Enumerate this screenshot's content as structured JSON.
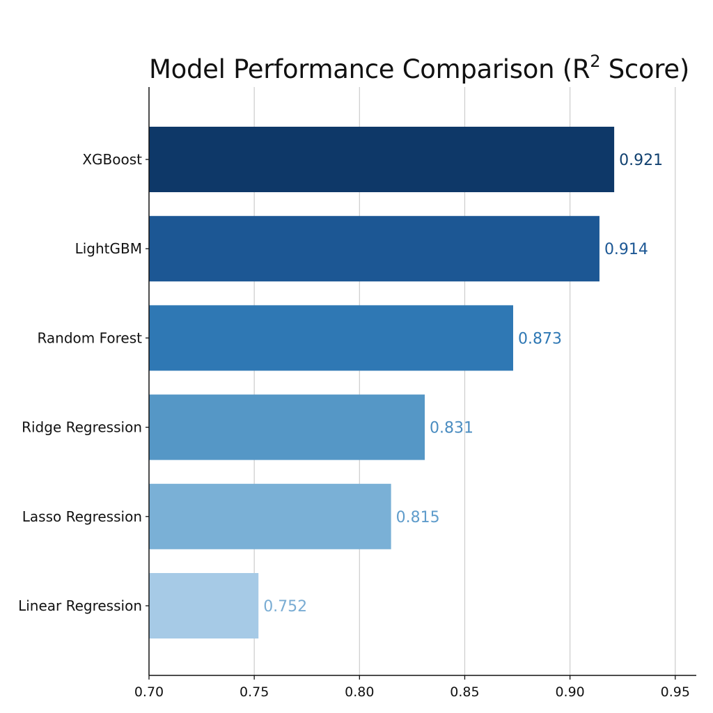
{
  "chart_data": {
    "type": "bar",
    "orientation": "horizontal",
    "title": "Model Performance Comparison (R",
    "title_superscript": "2",
    "title_suffix": " Score)",
    "categories": [
      "XGBoost",
      "LightGBM",
      "Random Forest",
      "Ridge Regression",
      "Lasso Regression",
      "Linear Regression"
    ],
    "values": [
      0.921,
      0.914,
      0.873,
      0.831,
      0.815,
      0.752
    ],
    "value_labels": [
      "0.921",
      "0.914",
      "0.873",
      "0.831",
      "0.815",
      "0.752"
    ],
    "bar_colors": [
      "#0e3868",
      "#1c5794",
      "#2f78b4",
      "#5597c6",
      "#7ab0d6",
      "#a6cae6"
    ],
    "label_colors": [
      "#10406f",
      "#1c5794",
      "#2f78b4",
      "#4a8cc0",
      "#5f9ccb",
      "#79acd3"
    ],
    "xlim": [
      0.7,
      0.96
    ],
    "xticks": [
      0.7,
      0.75,
      0.8,
      0.85,
      0.9,
      0.95
    ],
    "xtick_labels": [
      "0.70",
      "0.75",
      "0.80",
      "0.85",
      "0.90",
      "0.95"
    ],
    "xlabel": "",
    "ylabel": "",
    "grid": "vertical"
  }
}
